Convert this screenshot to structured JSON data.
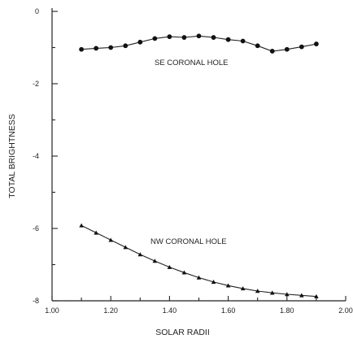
{
  "chart_data": {
    "type": "line",
    "title": "",
    "xlabel": "SOLAR RADII",
    "ylabel": "TOTAL BRIGHTNESS",
    "xlim": [
      1.0,
      2.0
    ],
    "ylim": [
      -8,
      0
    ],
    "x_ticks": [
      "1.00",
      "1.20",
      "1.40",
      "1.60",
      "1.80",
      "2.00"
    ],
    "y_ticks": [
      "0",
      "-2",
      "-4",
      "-6",
      "-8"
    ],
    "grid": false,
    "series": [
      {
        "name": "SE CORONAL HOLE",
        "marker": "circle",
        "x": [
          1.1,
          1.15,
          1.2,
          1.25,
          1.3,
          1.35,
          1.4,
          1.45,
          1.5,
          1.55,
          1.6,
          1.65,
          1.7,
          1.75,
          1.8,
          1.85,
          1.9
        ],
        "y": [
          -1.05,
          -1.02,
          -1.0,
          -0.95,
          -0.85,
          -0.75,
          -0.7,
          -0.72,
          -0.68,
          -0.72,
          -0.78,
          -0.82,
          -0.95,
          -1.1,
          -1.05,
          -0.98,
          -0.9
        ]
      },
      {
        "name": "NW CORONAL HOLE",
        "marker": "triangle",
        "x": [
          1.1,
          1.15,
          1.2,
          1.25,
          1.3,
          1.35,
          1.4,
          1.45,
          1.5,
          1.55,
          1.6,
          1.65,
          1.7,
          1.75,
          1.8,
          1.85,
          1.9
        ],
        "y": [
          -5.92,
          -6.12,
          -6.32,
          -6.52,
          -6.72,
          -6.9,
          -7.07,
          -7.22,
          -7.36,
          -7.48,
          -7.58,
          -7.66,
          -7.73,
          -7.78,
          -7.82,
          -7.85,
          -7.88
        ]
      }
    ],
    "annotations": [
      {
        "text": "SE CORONAL HOLE"
      },
      {
        "text": "NW CORONAL HOLE"
      }
    ],
    "colors": {
      "line": "#222222",
      "marker": "#111111"
    }
  }
}
